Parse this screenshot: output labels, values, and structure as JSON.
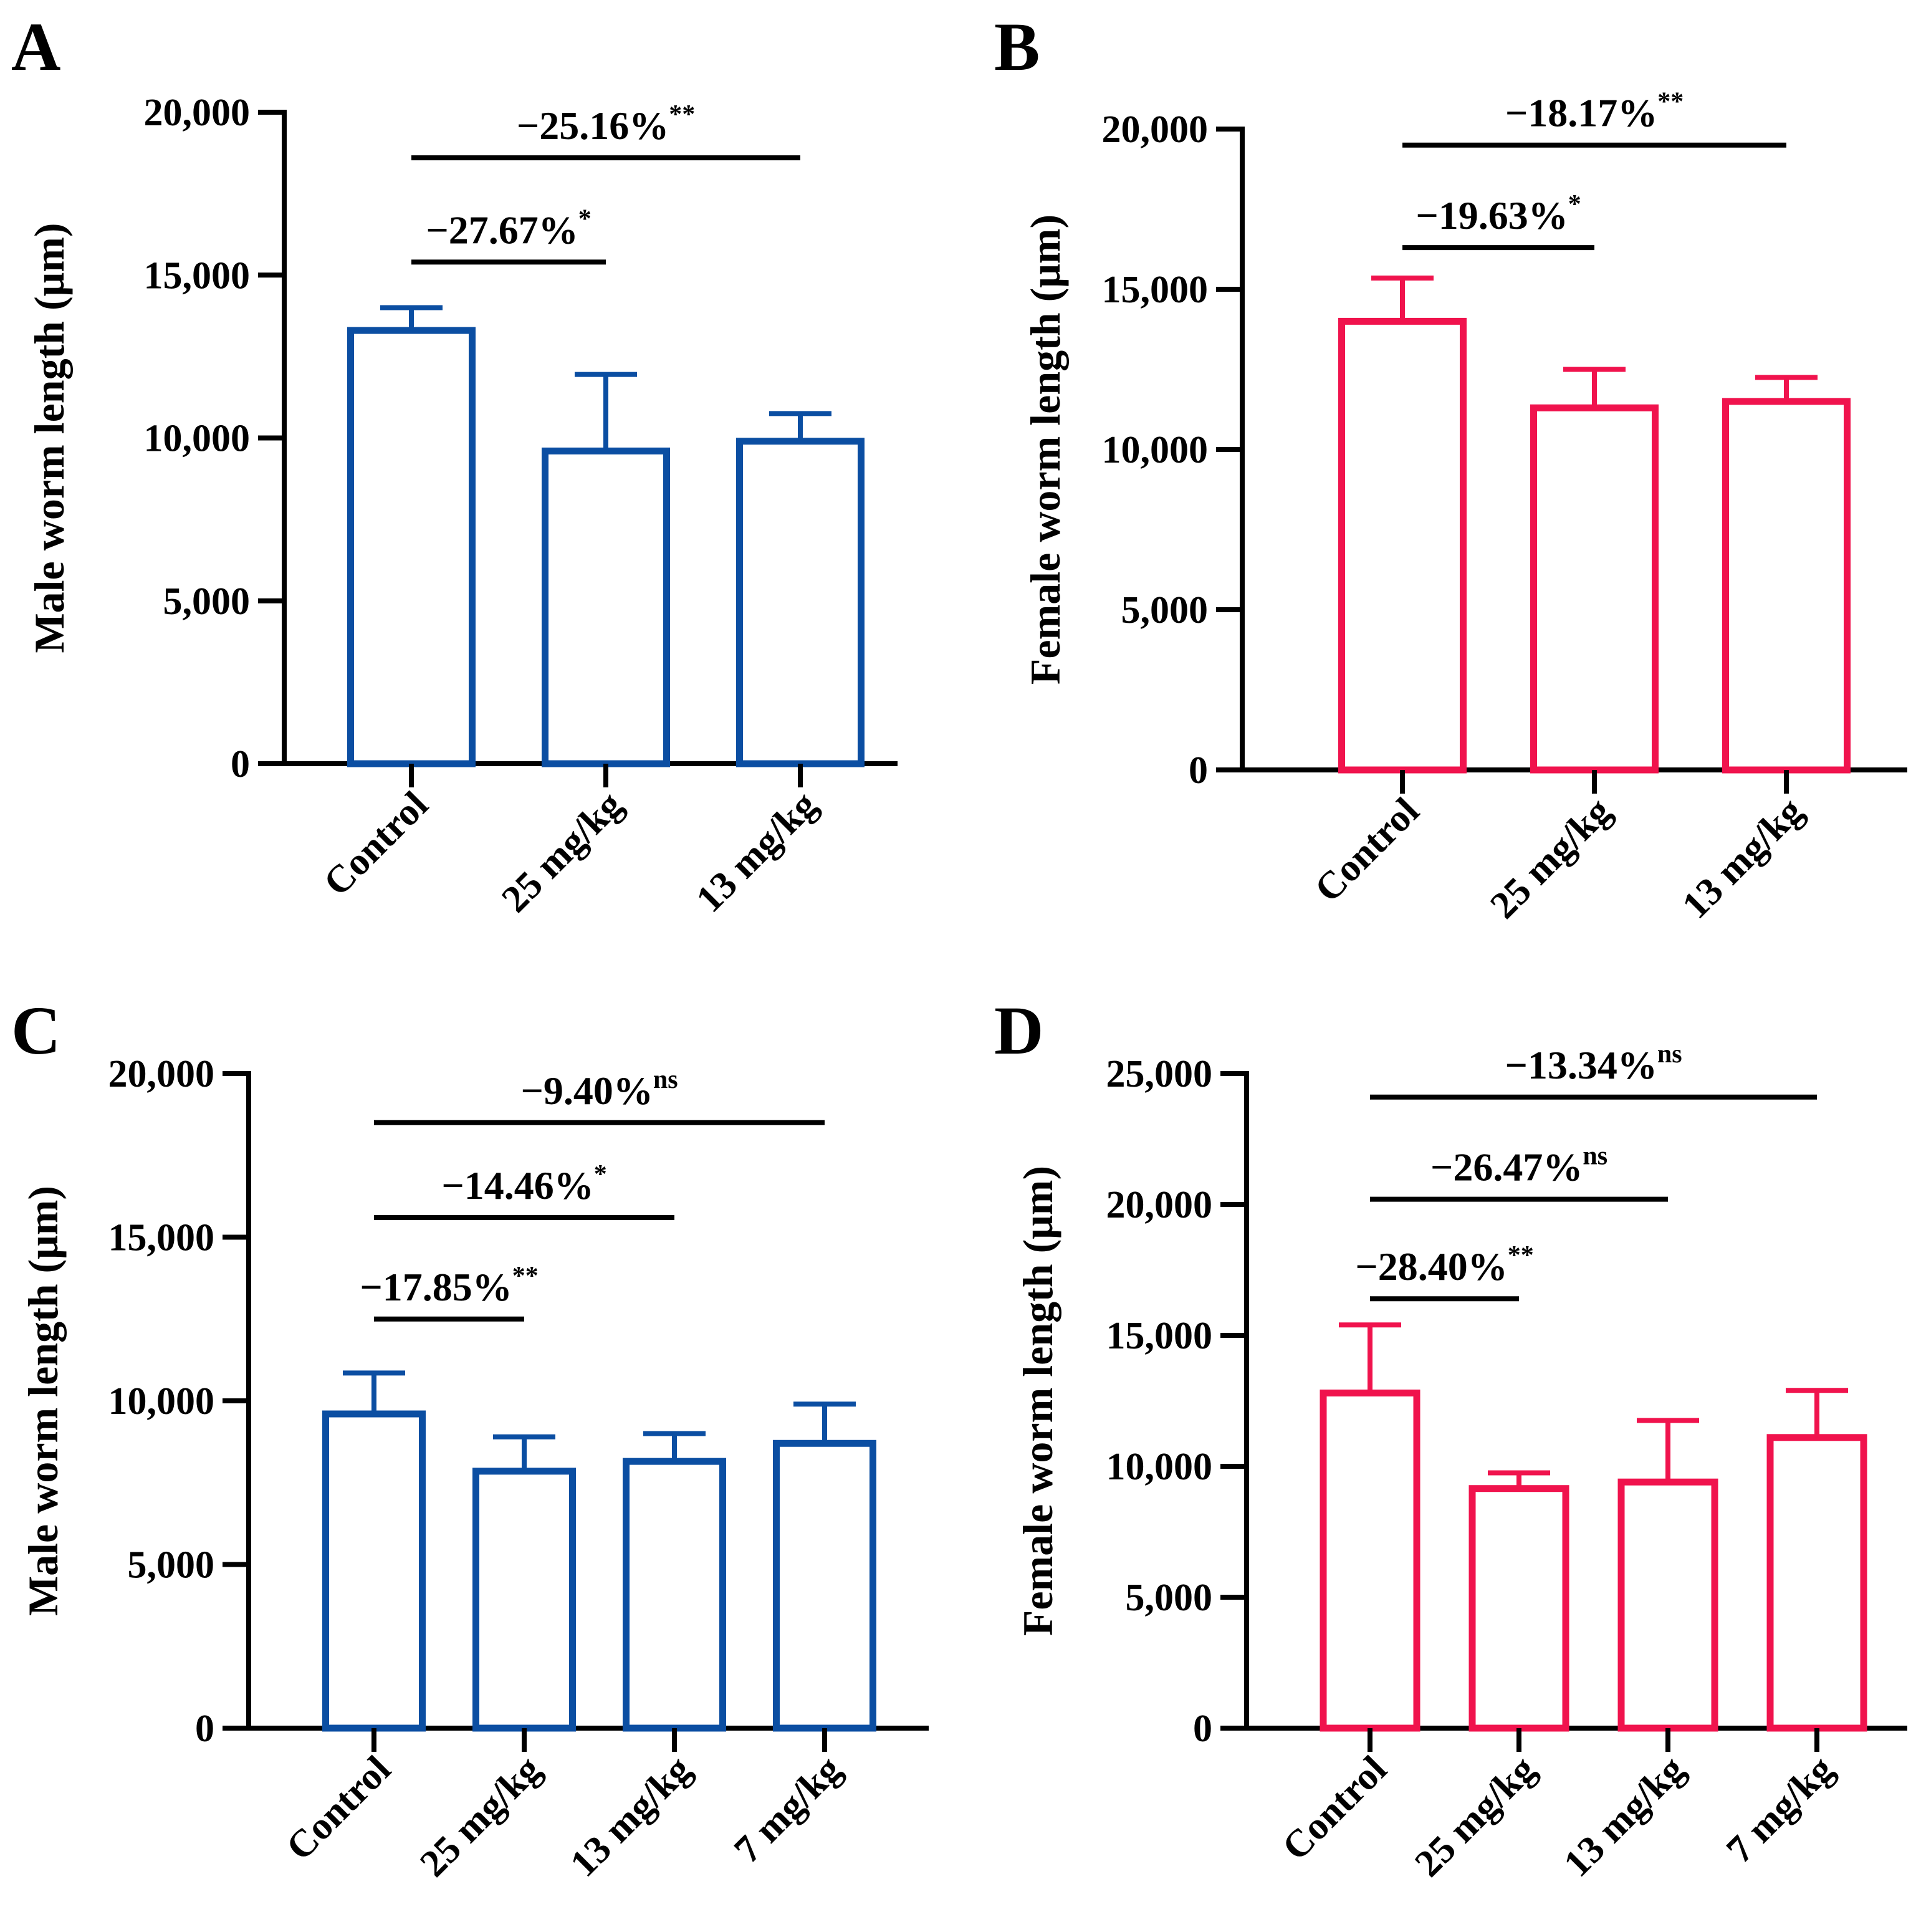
{
  "chart_data": [
    {
      "panel": "A",
      "type": "bar",
      "color": "#0b4ea2",
      "ylabel": "Male worm length (μm)",
      "ylim": [
        0,
        20000
      ],
      "yticks": [
        0,
        5000,
        10000,
        15000,
        20000
      ],
      "ytick_labels": [
        "0",
        "5,000",
        "10,000",
        "15,000",
        "20,000"
      ],
      "categories": [
        "Control",
        "25 mg/kg",
        "13 mg/kg"
      ],
      "values": [
        13300,
        9600,
        9900
      ],
      "errors": [
        700,
        2350,
        850
      ],
      "comparisons": [
        {
          "from": 0,
          "to": 1,
          "label": "−27.67%",
          "sig": "*",
          "y": 15400
        },
        {
          "from": 0,
          "to": 2,
          "label": "−25.16%",
          "sig": "**",
          "y": 18600
        }
      ]
    },
    {
      "panel": "B",
      "type": "bar",
      "color": "#f0134d",
      "ylabel": "Female worm length (μm)",
      "ylim": [
        0,
        20000
      ],
      "yticks": [
        0,
        5000,
        10000,
        15000,
        20000
      ],
      "ytick_labels": [
        "0",
        "5,000",
        "10,000",
        "15,000",
        "20,000"
      ],
      "categories": [
        "Control",
        "25 mg/kg",
        "13 mg/kg"
      ],
      "values": [
        14000,
        11300,
        11500
      ],
      "errors": [
        1350,
        1200,
        750
      ],
      "comparisons": [
        {
          "from": 0,
          "to": 1,
          "label": "−19.63%",
          "sig": "*",
          "y": 16300
        },
        {
          "from": 0,
          "to": 2,
          "label": "−18.17%",
          "sig": "**",
          "y": 19500
        }
      ]
    },
    {
      "panel": "C",
      "type": "bar",
      "color": "#0b4ea2",
      "ylabel": "Male worm length (μm)",
      "ylim": [
        0,
        20000
      ],
      "yticks": [
        0,
        5000,
        10000,
        15000,
        20000
      ],
      "ytick_labels": [
        "0",
        "5,000",
        "10,000",
        "15,000",
        "20,000"
      ],
      "categories": [
        "Control",
        "25 mg/kg",
        "13 mg/kg",
        "7 mg/kg"
      ],
      "values": [
        9600,
        7850,
        8150,
        8700
      ],
      "errors": [
        1250,
        1050,
        850,
        1200
      ],
      "comparisons": [
        {
          "from": 0,
          "to": 1,
          "label": "−17.85%",
          "sig": "**",
          "y": 12500
        },
        {
          "from": 0,
          "to": 2,
          "label": "−14.46%",
          "sig": "*",
          "y": 15600
        },
        {
          "from": 0,
          "to": 3,
          "label": "−9.40%",
          "sig": "ns",
          "y": 18500
        }
      ]
    },
    {
      "panel": "D",
      "type": "bar",
      "color": "#f0134d",
      "ylabel": "Female worm length (μm)",
      "ylim": [
        0,
        25000
      ],
      "yticks": [
        0,
        5000,
        10000,
        15000,
        20000,
        25000
      ],
      "ytick_labels": [
        "0",
        "5,000",
        "10,000",
        "15,000",
        "20,000",
        "25,000"
      ],
      "categories": [
        "Control",
        "25 mg/kg",
        "13 mg/kg",
        "7 mg/kg"
      ],
      "values": [
        12800,
        9150,
        9400,
        11100
      ],
      "errors": [
        2600,
        600,
        2350,
        1800
      ],
      "comparisons": [
        {
          "from": 0,
          "to": 1,
          "label": "−28.40%",
          "sig": "**",
          "y": 16400
        },
        {
          "from": 0,
          "to": 2,
          "label": "−26.47%",
          "sig": "ns",
          "y": 20200
        },
        {
          "from": 0,
          "to": 3,
          "label": "−13.34%",
          "sig": "ns",
          "y": 24100
        }
      ]
    }
  ]
}
